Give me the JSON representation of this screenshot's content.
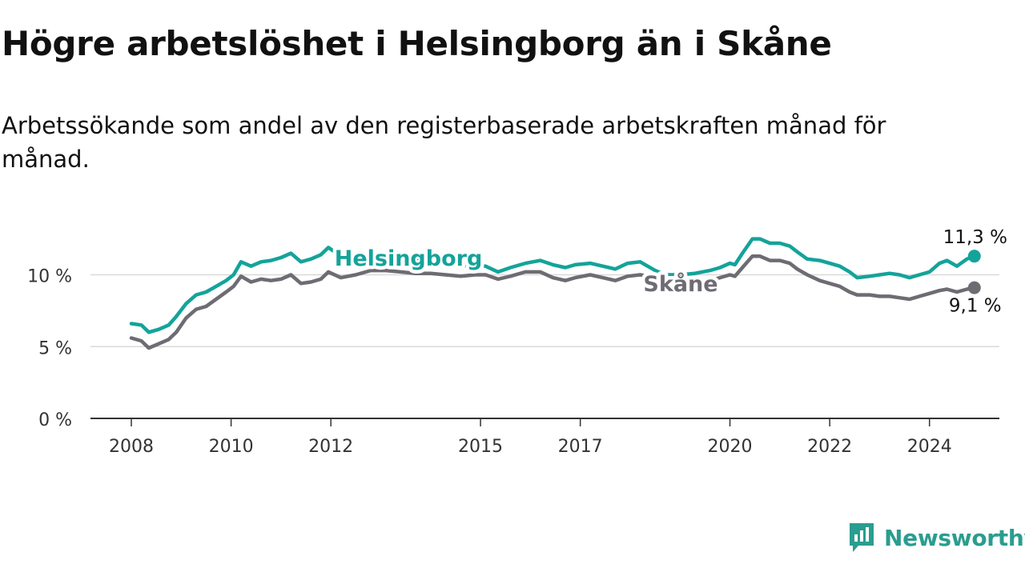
{
  "header": {
    "title": "Högre arbetslöshet i Helsingborg än i Skåne",
    "subtitle": "Arbetssökande som andel av den registerbaserade arbetskraften månad för månad."
  },
  "brand": {
    "name": "Newsworthy"
  },
  "colors": {
    "helsingborg": "#14a39a",
    "skane": "#6f6b73",
    "grid": "#d9d9d9",
    "axis": "#333333",
    "brand": "#2a9d8f"
  },
  "chart_data": {
    "type": "line",
    "ylim": [
      0,
      13.5
    ],
    "xlim": [
      2008.0,
      2025.0
    ],
    "yticks": [
      0,
      5,
      10
    ],
    "ytick_labels": [
      "0 %",
      "5 %",
      "10 %"
    ],
    "xticks": [
      2008,
      2010,
      2012,
      2015,
      2017,
      2020,
      2022,
      2024
    ],
    "xtick_labels": [
      "2008",
      "2010",
      "2012",
      "2015",
      "2017",
      "2020",
      "2022",
      "2024"
    ],
    "grid": true,
    "series": [
      {
        "name": "Helsingborg",
        "label": "Helsingborg",
        "end_label": "11,3 %",
        "color": "#14a39a",
        "points": [
          [
            2008.0,
            6.6
          ],
          [
            2008.2,
            6.5
          ],
          [
            2008.35,
            6.0
          ],
          [
            2008.55,
            6.2
          ],
          [
            2008.75,
            6.5
          ],
          [
            2008.9,
            7.1
          ],
          [
            2009.1,
            8.0
          ],
          [
            2009.3,
            8.6
          ],
          [
            2009.5,
            8.8
          ],
          [
            2009.7,
            9.2
          ],
          [
            2009.9,
            9.6
          ],
          [
            2010.05,
            10.0
          ],
          [
            2010.2,
            10.9
          ],
          [
            2010.4,
            10.6
          ],
          [
            2010.6,
            10.9
          ],
          [
            2010.8,
            11.0
          ],
          [
            2011.0,
            11.2
          ],
          [
            2011.2,
            11.5
          ],
          [
            2011.4,
            10.9
          ],
          [
            2011.6,
            11.1
          ],
          [
            2011.8,
            11.4
          ],
          [
            2011.95,
            11.9
          ],
          [
            2012.2,
            11.3
          ],
          [
            2012.5,
            11.2
          ],
          [
            2012.8,
            11.5
          ],
          [
            2013.1,
            11.4
          ],
          [
            2013.4,
            11.2
          ],
          [
            2013.7,
            11.1
          ],
          [
            2014.0,
            10.9
          ],
          [
            2014.3,
            10.7
          ],
          [
            2014.6,
            10.6
          ],
          [
            2014.9,
            10.7
          ],
          [
            2015.1,
            10.6
          ],
          [
            2015.35,
            10.2
          ],
          [
            2015.6,
            10.5
          ],
          [
            2015.9,
            10.8
          ],
          [
            2016.2,
            11.0
          ],
          [
            2016.45,
            10.7
          ],
          [
            2016.7,
            10.5
          ],
          [
            2016.9,
            10.7
          ],
          [
            2017.2,
            10.8
          ],
          [
            2017.45,
            10.6
          ],
          [
            2017.7,
            10.4
          ],
          [
            2017.95,
            10.8
          ],
          [
            2018.2,
            10.9
          ],
          [
            2018.5,
            10.3
          ],
          [
            2018.7,
            10.0
          ],
          [
            2019.0,
            10.0
          ],
          [
            2019.3,
            10.1
          ],
          [
            2019.6,
            10.3
          ],
          [
            2019.8,
            10.5
          ],
          [
            2020.0,
            10.8
          ],
          [
            2020.1,
            10.7
          ],
          [
            2020.25,
            11.5
          ],
          [
            2020.45,
            12.5
          ],
          [
            2020.6,
            12.5
          ],
          [
            2020.8,
            12.2
          ],
          [
            2021.0,
            12.2
          ],
          [
            2021.2,
            12.0
          ],
          [
            2021.35,
            11.6
          ],
          [
            2021.55,
            11.1
          ],
          [
            2021.8,
            11.0
          ],
          [
            2022.0,
            10.8
          ],
          [
            2022.2,
            10.6
          ],
          [
            2022.4,
            10.2
          ],
          [
            2022.55,
            9.8
          ],
          [
            2022.8,
            9.9
          ],
          [
            2023.0,
            10.0
          ],
          [
            2023.2,
            10.1
          ],
          [
            2023.4,
            10.0
          ],
          [
            2023.6,
            9.8
          ],
          [
            2023.8,
            10.0
          ],
          [
            2024.0,
            10.2
          ],
          [
            2024.2,
            10.8
          ],
          [
            2024.35,
            11.0
          ],
          [
            2024.55,
            10.6
          ],
          [
            2024.75,
            11.1
          ],
          [
            2024.9,
            11.3
          ]
        ]
      },
      {
        "name": "Skåne",
        "label": "Skåne",
        "end_label": "9,1 %",
        "color": "#6f6b73",
        "points": [
          [
            2008.0,
            5.6
          ],
          [
            2008.2,
            5.4
          ],
          [
            2008.35,
            4.9
          ],
          [
            2008.55,
            5.2
          ],
          [
            2008.75,
            5.5
          ],
          [
            2008.9,
            6.0
          ],
          [
            2009.1,
            7.0
          ],
          [
            2009.3,
            7.6
          ],
          [
            2009.5,
            7.8
          ],
          [
            2009.7,
            8.3
          ],
          [
            2009.9,
            8.8
          ],
          [
            2010.05,
            9.2
          ],
          [
            2010.2,
            9.9
          ],
          [
            2010.4,
            9.5
          ],
          [
            2010.6,
            9.7
          ],
          [
            2010.8,
            9.6
          ],
          [
            2011.0,
            9.7
          ],
          [
            2011.2,
            10.0
          ],
          [
            2011.4,
            9.4
          ],
          [
            2011.6,
            9.5
          ],
          [
            2011.8,
            9.7
          ],
          [
            2011.95,
            10.2
          ],
          [
            2012.2,
            9.8
          ],
          [
            2012.5,
            10.0
          ],
          [
            2012.8,
            10.3
          ],
          [
            2013.1,
            10.3
          ],
          [
            2013.4,
            10.2
          ],
          [
            2013.7,
            10.1
          ],
          [
            2014.0,
            10.1
          ],
          [
            2014.3,
            10.0
          ],
          [
            2014.6,
            9.9
          ],
          [
            2014.9,
            10.0
          ],
          [
            2015.1,
            10.0
          ],
          [
            2015.35,
            9.7
          ],
          [
            2015.6,
            9.9
          ],
          [
            2015.9,
            10.2
          ],
          [
            2016.2,
            10.2
          ],
          [
            2016.45,
            9.8
          ],
          [
            2016.7,
            9.6
          ],
          [
            2016.9,
            9.8
          ],
          [
            2017.2,
            10.0
          ],
          [
            2017.45,
            9.8
          ],
          [
            2017.7,
            9.6
          ],
          [
            2017.95,
            9.9
          ],
          [
            2018.2,
            10.0
          ],
          [
            2018.5,
            9.8
          ],
          [
            2018.7,
            9.5
          ],
          [
            2019.0,
            9.4
          ],
          [
            2019.3,
            9.4
          ],
          [
            2019.6,
            9.6
          ],
          [
            2019.8,
            9.8
          ],
          [
            2020.0,
            10.0
          ],
          [
            2020.1,
            9.9
          ],
          [
            2020.25,
            10.5
          ],
          [
            2020.45,
            11.3
          ],
          [
            2020.6,
            11.3
          ],
          [
            2020.8,
            11.0
          ],
          [
            2021.0,
            11.0
          ],
          [
            2021.2,
            10.8
          ],
          [
            2021.35,
            10.4
          ],
          [
            2021.55,
            10.0
          ],
          [
            2021.8,
            9.6
          ],
          [
            2022.0,
            9.4
          ],
          [
            2022.2,
            9.2
          ],
          [
            2022.4,
            8.8
          ],
          [
            2022.55,
            8.6
          ],
          [
            2022.8,
            8.6
          ],
          [
            2023.0,
            8.5
          ],
          [
            2023.2,
            8.5
          ],
          [
            2023.4,
            8.4
          ],
          [
            2023.6,
            8.3
          ],
          [
            2023.8,
            8.5
          ],
          [
            2024.0,
            8.7
          ],
          [
            2024.2,
            8.9
          ],
          [
            2024.35,
            9.0
          ],
          [
            2024.55,
            8.8
          ],
          [
            2024.75,
            9.0
          ],
          [
            2024.9,
            9.1
          ]
        ]
      }
    ]
  }
}
